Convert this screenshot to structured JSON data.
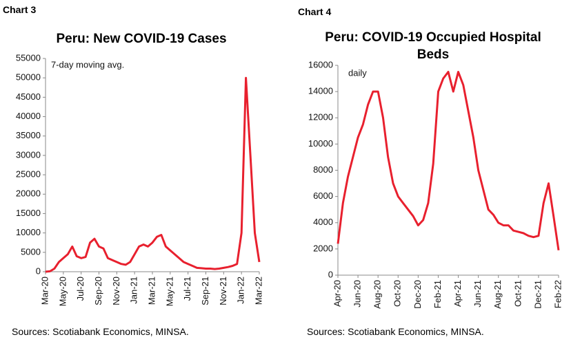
{
  "chart_data": [
    {
      "type": "line",
      "chart_label": "Chart 3",
      "title": "Peru: New COVID-19 Cases",
      "annotation": "7-day moving avg.",
      "source": "Sources: Scotiabank Economics, MINSA.",
      "categories": [
        "Mar-20",
        null,
        null,
        null,
        "May-20",
        null,
        null,
        null,
        "Jul-20",
        null,
        null,
        null,
        "Sep-20",
        null,
        null,
        null,
        "Nov-20",
        null,
        null,
        null,
        "Jan-21",
        null,
        null,
        null,
        "Mar-21",
        null,
        null,
        null,
        "May-21",
        null,
        null,
        null,
        "Jul-21",
        null,
        null,
        null,
        "Sep-21",
        null,
        null,
        null,
        "Nov-21",
        null,
        null,
        null,
        "Jan-22",
        null,
        null,
        null,
        "Mar-22"
      ],
      "series": [
        {
          "color": "#e8202e",
          "values": [
            0,
            100,
            800,
            2500,
            3500,
            4500,
            6500,
            4000,
            3500,
            3800,
            7500,
            8500,
            6500,
            6000,
            3500,
            3000,
            2500,
            2000,
            1800,
            2500,
            4500,
            6500,
            7000,
            6500,
            7500,
            9000,
            9500,
            6500,
            5500,
            4500,
            3500,
            2500,
            2000,
            1500,
            1000,
            900,
            800,
            800,
            700,
            800,
            1000,
            1200,
            1500,
            2000,
            10000,
            50000,
            30000,
            10000,
            2500
          ]
        }
      ],
      "ylim": [
        0,
        55000
      ],
      "yticks": [
        0,
        5000,
        10000,
        15000,
        20000,
        25000,
        30000,
        35000,
        40000,
        45000,
        50000,
        55000
      ],
      "grid": false
    },
    {
      "type": "line",
      "chart_label": "Chart 4",
      "title": "Peru: COVID-19 Occupied Hospital Beds",
      "annotation": "daily",
      "source": "Sources: Scotiabank Economics, MINSA.",
      "categories": [
        "Apr-20",
        null,
        null,
        null,
        "Jun-20",
        null,
        null,
        null,
        "Aug-20",
        null,
        null,
        null,
        "Oct-20",
        null,
        null,
        null,
        "Dec-20",
        null,
        null,
        null,
        "Feb-21",
        null,
        null,
        null,
        "Apr-21",
        null,
        null,
        null,
        "Jun-21",
        null,
        null,
        null,
        "Aug-21",
        null,
        null,
        null,
        "Oct-21",
        null,
        null,
        null,
        "Dec-21",
        null,
        null,
        null,
        "Feb-22"
      ],
      "series": [
        {
          "color": "#e8202e",
          "values": [
            2400,
            5500,
            7500,
            9000,
            10500,
            11500,
            13000,
            14000,
            14000,
            12000,
            9000,
            7000,
            6000,
            5500,
            5000,
            4500,
            3800,
            4200,
            5500,
            8500,
            14000,
            15000,
            15500,
            14000,
            15500,
            14500,
            12500,
            10500,
            8000,
            6500,
            5000,
            4600,
            4000,
            3800,
            3800,
            3400,
            3300,
            3200,
            3000,
            2900,
            3000,
            5500,
            7000,
            4500,
            1900
          ]
        }
      ],
      "ylim": [
        0,
        16000
      ],
      "yticks": [
        0,
        2000,
        4000,
        6000,
        8000,
        10000,
        12000,
        14000,
        16000
      ],
      "grid": false
    }
  ]
}
